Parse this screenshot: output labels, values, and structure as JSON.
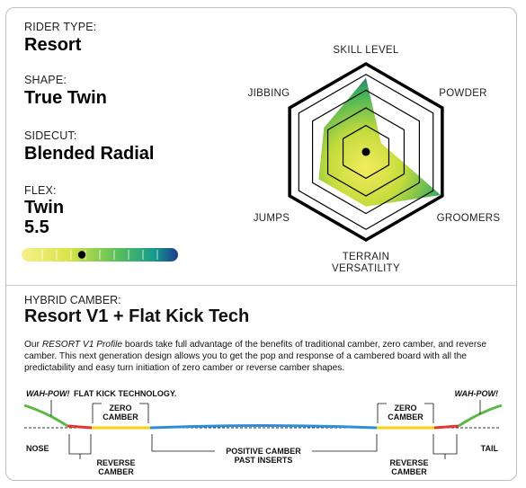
{
  "rider_type": {
    "label": "RIDER TYPE:",
    "value": "Resort"
  },
  "shape": {
    "label": "SHAPE:",
    "value": "True Twin"
  },
  "sidecut": {
    "label": "SIDECUT:",
    "value": "Blended Radial"
  },
  "flex": {
    "label": "FLEX:",
    "value_line1": "Twin",
    "value_line2": "5.5",
    "rating": 5.5,
    "scale_max": 10
  },
  "radar": {
    "axes": [
      "SKILL LEVEL",
      "POWDER",
      "GROOMERS",
      "TERRAIN",
      "VERSATILITY",
      "JUMPS",
      "JIBBING"
    ],
    "values": {
      "skill_level": 0.84,
      "powder": 0.2,
      "groomers": 0.98,
      "terrain_versatility": 0.62,
      "jumps": 0.62,
      "jibbing": 0.55
    }
  },
  "camber": {
    "label": "HYBRID CAMBER:",
    "title": "Resort V1 + Flat Kick Tech",
    "desc_em": "RESORT V1 Profile",
    "desc_pre": "Our ",
    "desc_post": " boards take full advantage of the benefits of traditional camber, zero camber, and reverse camber. This next generation design allows you to get the pop and response of a cambered board with all the predictability and easy turn initiation of zero camber or reverse camber shapes."
  },
  "profile": {
    "wah_pow_left": "WAH-POW!",
    "flat_kick": "FLAT KICK TECHNOLOGY.",
    "wah_pow_right": "WAH-POW!",
    "zero": "ZERO",
    "camber": "CAMBER",
    "nose": "NOSE",
    "tail": "TAIL",
    "reverse": "REVERSE",
    "positive": "POSITIVE CAMBER",
    "past_inserts": "PAST INSERTS"
  },
  "colors": {
    "green": "#5bb848",
    "red": "#e8342e",
    "yellow": "#f4d214",
    "blue": "#2f8fd6",
    "navy": "#1f3b8f"
  }
}
